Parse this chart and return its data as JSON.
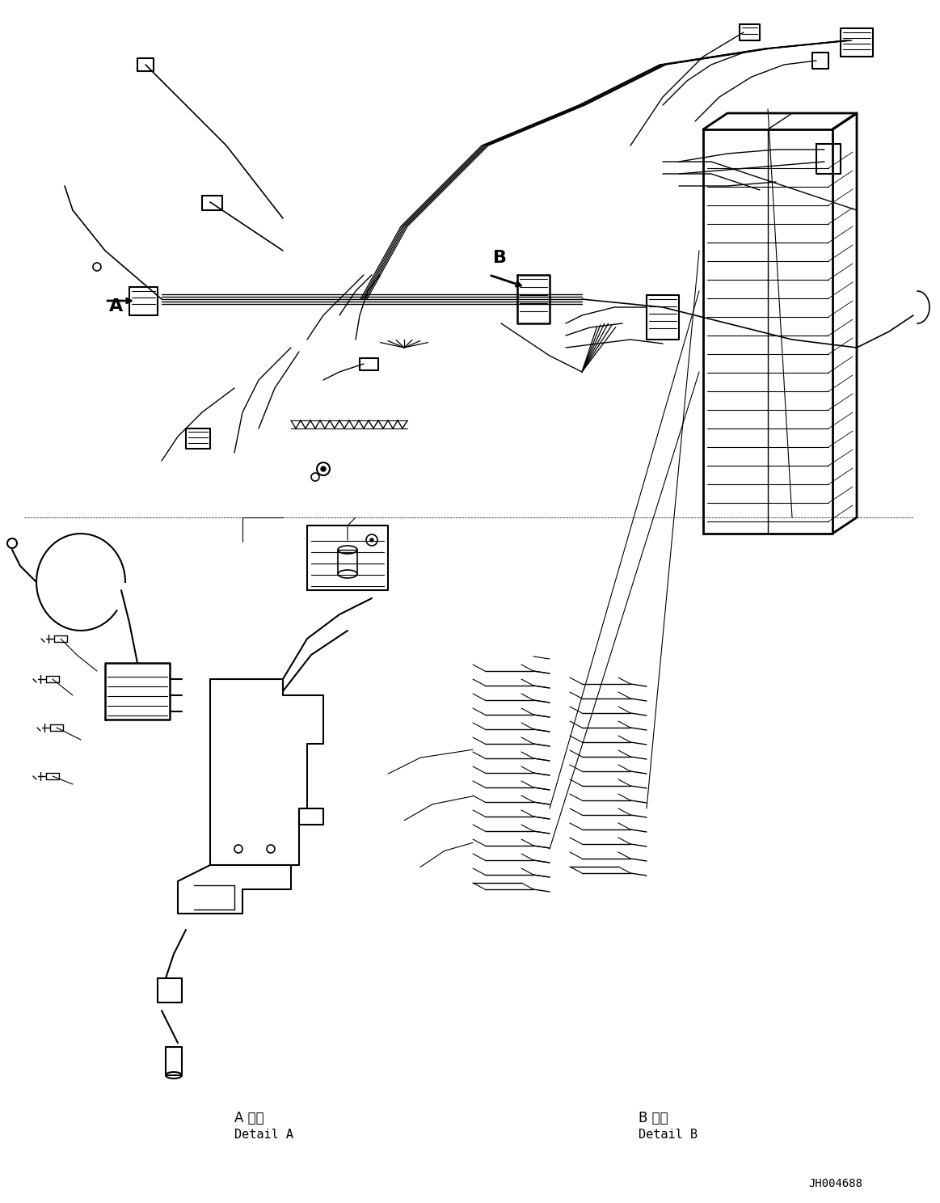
{
  "bg_color": "#ffffff",
  "line_color": "#000000",
  "fig_width": 11.63,
  "fig_height": 14.88,
  "part_number": "JH004688",
  "label_a": "A",
  "label_b": "B",
  "detail_a_jp": "A 詳細",
  "detail_a_en": "Detail A",
  "detail_b_jp": "B 詳細",
  "detail_b_en": "Detail B"
}
